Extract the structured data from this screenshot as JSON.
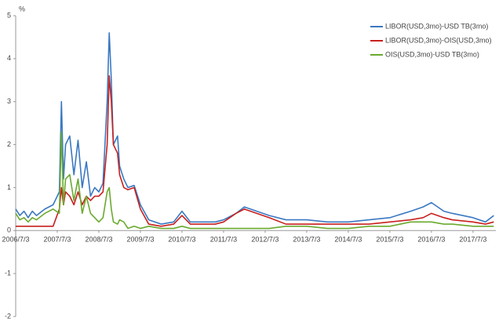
{
  "chart_data": {
    "type": "line",
    "y_label": "%",
    "x": [
      2006.5,
      2006.6,
      2006.7,
      2006.8,
      2006.9,
      2007.0,
      2007.2,
      2007.4,
      2007.55,
      2007.6,
      2007.65,
      2007.7,
      2007.8,
      2007.9,
      2008.0,
      2008.1,
      2008.2,
      2008.3,
      2008.4,
      2008.5,
      2008.6,
      2008.7,
      2008.75,
      2008.8,
      2008.85,
      2008.95,
      2009.0,
      2009.1,
      2009.2,
      2009.35,
      2009.5,
      2009.7,
      2010.0,
      2010.3,
      2010.5,
      2010.7,
      2011.0,
      2011.3,
      2011.5,
      2011.8,
      2012.0,
      2012.3,
      2012.6,
      2013.0,
      2013.5,
      2014.0,
      2014.5,
      2015.0,
      2015.5,
      2016.0,
      2016.3,
      2016.5,
      2016.8,
      2017.0,
      2017.5,
      2017.8,
      2018.0
    ],
    "series": [
      {
        "name": "LIBOR(USD,3mo)-USD TB(3mo)",
        "color": "#3a78c2",
        "values": [
          0.5,
          0.35,
          0.45,
          0.3,
          0.45,
          0.35,
          0.5,
          0.6,
          0.9,
          3.0,
          1.2,
          2.0,
          2.2,
          1.3,
          2.1,
          1.0,
          1.6,
          0.8,
          1.0,
          0.9,
          1.1,
          3.0,
          4.6,
          3.5,
          2.0,
          2.2,
          1.5,
          1.2,
          1.0,
          1.05,
          0.6,
          0.25,
          0.15,
          0.2,
          0.45,
          0.2,
          0.2,
          0.2,
          0.25,
          0.4,
          0.55,
          0.45,
          0.35,
          0.25,
          0.25,
          0.2,
          0.2,
          0.25,
          0.3,
          0.45,
          0.55,
          0.65,
          0.45,
          0.4,
          0.3,
          0.2,
          0.35
        ]
      },
      {
        "name": "LIBOR(USD,3mo)-OIS(USD,3mo)",
        "color": "#c8201e",
        "values": [
          0.1,
          0.1,
          0.1,
          0.1,
          0.1,
          0.1,
          0.1,
          0.1,
          0.5,
          1.0,
          0.6,
          0.9,
          0.8,
          0.6,
          0.9,
          0.6,
          0.8,
          0.7,
          0.8,
          0.8,
          0.9,
          2.0,
          3.6,
          3.0,
          2.0,
          1.8,
          1.3,
          1.0,
          0.95,
          1.0,
          0.5,
          0.15,
          0.1,
          0.15,
          0.35,
          0.15,
          0.15,
          0.15,
          0.2,
          0.4,
          0.5,
          0.4,
          0.3,
          0.15,
          0.15,
          0.15,
          0.15,
          0.15,
          0.2,
          0.25,
          0.3,
          0.4,
          0.3,
          0.25,
          0.2,
          0.15,
          0.2
        ]
      },
      {
        "name": "OIS(USD,3mo)-USD TB(3mo)",
        "color": "#6aaa2e",
        "values": [
          0.4,
          0.25,
          0.3,
          0.2,
          0.3,
          0.25,
          0.4,
          0.5,
          0.4,
          2.3,
          0.6,
          1.2,
          1.3,
          0.7,
          1.2,
          0.4,
          0.8,
          0.4,
          0.3,
          0.2,
          0.3,
          0.9,
          1.0,
          0.5,
          0.2,
          0.15,
          0.25,
          0.2,
          0.05,
          0.1,
          0.05,
          0.1,
          0.05,
          0.05,
          0.1,
          0.05,
          0.05,
          0.05,
          0.05,
          0.05,
          0.05,
          0.05,
          0.05,
          0.1,
          0.1,
          0.05,
          0.05,
          0.1,
          0.1,
          0.2,
          0.2,
          0.2,
          0.15,
          0.15,
          0.1,
          0.1,
          0.1
        ]
      }
    ],
    "xlim": [
      2006.5,
      2018.05
    ],
    "xticks": [
      {
        "value": 2006.5,
        "label": "2006/7/3"
      },
      {
        "value": 2007.5,
        "label": "2007/7/3"
      },
      {
        "value": 2008.5,
        "label": "2008/7/3"
      },
      {
        "value": 2009.5,
        "label": "2009/7/3"
      },
      {
        "value": 2010.5,
        "label": "2010/7/3"
      },
      {
        "value": 2011.5,
        "label": "2011/7/3"
      },
      {
        "value": 2012.5,
        "label": "2012/7/3"
      },
      {
        "value": 2013.5,
        "label": "2013/7/3"
      },
      {
        "value": 2014.5,
        "label": "2014/7/3"
      },
      {
        "value": 2015.5,
        "label": "2015/7/3"
      },
      {
        "value": 2016.5,
        "label": "2016/7/3"
      },
      {
        "value": 2017.5,
        "label": "2017/7/3"
      }
    ],
    "ylim": [
      -2,
      5
    ],
    "yticks": [
      -2,
      -1,
      0,
      1,
      2,
      3,
      4,
      5
    ],
    "grid": false,
    "legend": "upper right"
  }
}
